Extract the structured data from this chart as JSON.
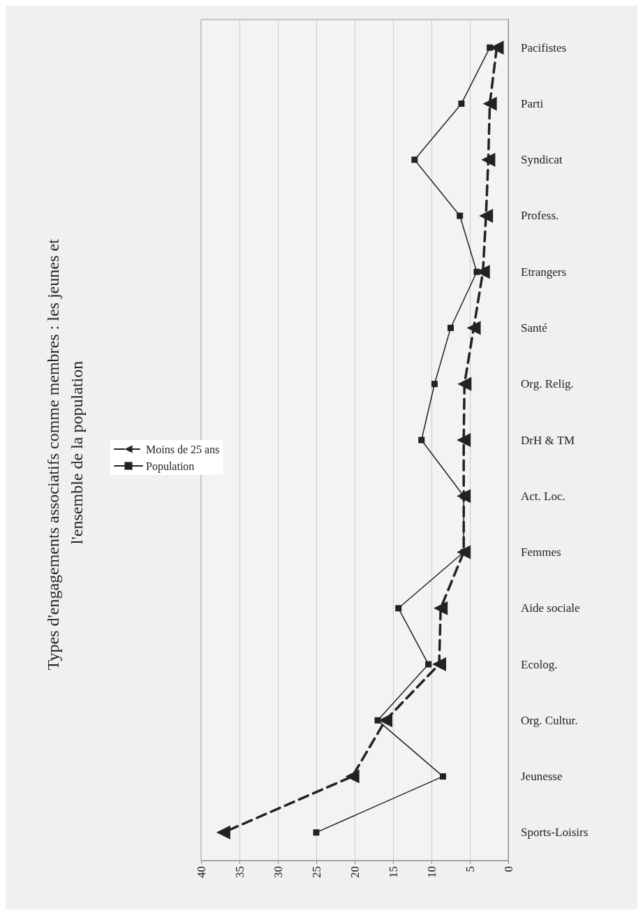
{
  "chart_data": {
    "type": "line",
    "orientation": "horizontal",
    "title": "Types d'engagements associatifs comme membres : les jeunes et l'ensemble de la population",
    "categories": [
      "Pacifistes",
      "Parti",
      "Syndicat",
      "Profess.",
      "Etrangers",
      "Santé",
      "Org. Relig.",
      "DrH & TM",
      "Act. Loc.",
      "Femmes",
      "Aide sociale",
      "Ecolog.",
      "Org. Cultur.",
      "Jeunesse",
      "Sports-Loisirs"
    ],
    "series": [
      {
        "name": "Moins de 25 ans",
        "color": "#222222",
        "marker": "triangle",
        "line_style": "dashed",
        "values": [
          1.5,
          2.4,
          2.6,
          2.9,
          3.3,
          4.5,
          5.7,
          5.8,
          5.8,
          5.8,
          8.8,
          9.0,
          16.0,
          20.3,
          37.1
        ]
      },
      {
        "name": "Population",
        "color": "#222222",
        "marker": "square",
        "line_style": "solid",
        "values": [
          2.4,
          6.1,
          12.2,
          6.3,
          4.1,
          7.5,
          9.6,
          11.3,
          5.8,
          5.8,
          14.3,
          10.4,
          17.0,
          8.5,
          25.0
        ]
      }
    ],
    "xlim": [
      40,
      0
    ],
    "xticks": [
      40,
      35,
      30,
      25,
      20,
      15,
      10,
      5,
      0
    ],
    "grid": "x",
    "legend": "left"
  }
}
